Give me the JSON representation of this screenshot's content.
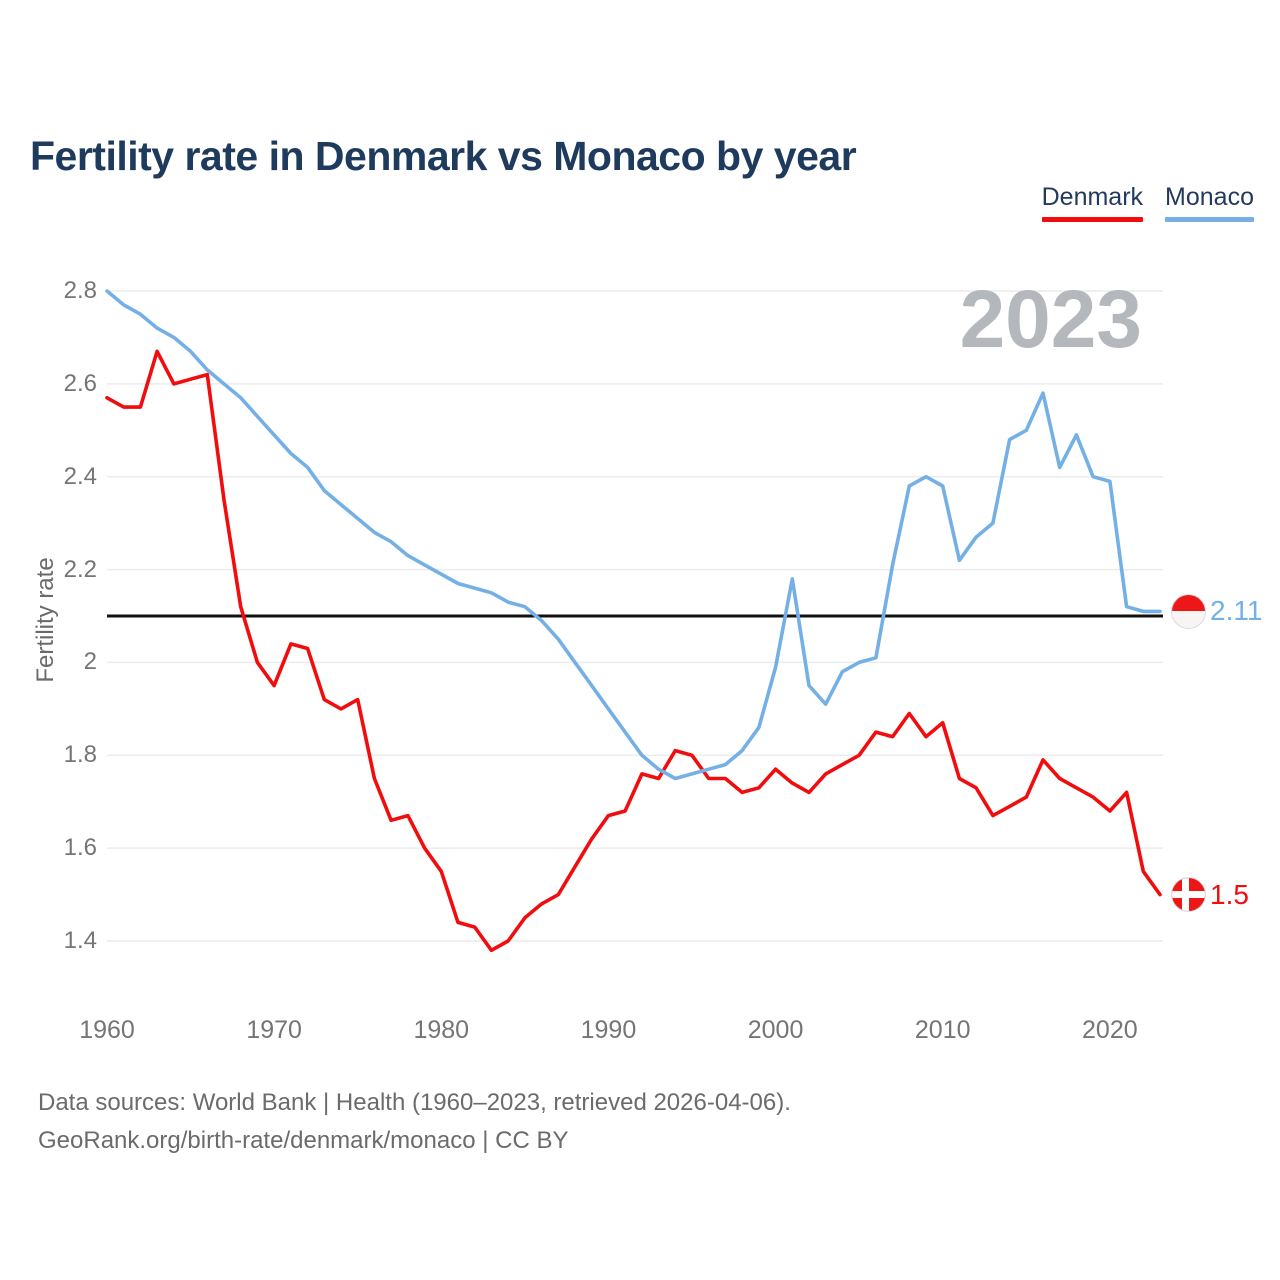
{
  "title": "Fertility rate in Denmark vs Monaco by year",
  "watermark": "2023",
  "colors": {
    "denmark": "#f10d0d",
    "monaco": "#74b0e6",
    "reference_line": "#111111",
    "grid": "#ececec",
    "title_text": "#1e3a5c",
    "axis_text": "#757575",
    "watermark_text": "#b4b8bc"
  },
  "legend": {
    "denmark": {
      "label": "Denmark"
    },
    "monaco": {
      "label": "Monaco"
    }
  },
  "y_axis": {
    "label": "Fertility rate",
    "ticks": [
      "2.8",
      "2.6",
      "2.4",
      "2.2",
      "2",
      "1.8",
      "1.6",
      "1.4"
    ]
  },
  "x_axis": {
    "ticks": [
      "1960",
      "1970",
      "1980",
      "1990",
      "2000",
      "2010",
      "2020"
    ]
  },
  "end_labels": {
    "monaco": {
      "text": "2.11",
      "icon": "monaco-flag-icon"
    },
    "denmark": {
      "text": "1.5",
      "icon": "denmark-flag-icon"
    }
  },
  "footer": {
    "line1": "Data sources: World Bank | Health (1960–2023, retrieved 2026-04-06).",
    "line2": "GeoRank.org/birth-rate/denmark/monaco | CC BY"
  },
  "chart_data": {
    "type": "line",
    "title": "Fertility rate in Denmark vs Monaco by year",
    "xlabel": "",
    "ylabel": "Fertility rate",
    "xlim": [
      1960,
      2023
    ],
    "ylim": [
      1.3,
      2.85
    ],
    "grid": "horizontal",
    "legend_position": "top-right",
    "reference_line": 2.1,
    "x": [
      1960,
      1961,
      1962,
      1963,
      1964,
      1965,
      1966,
      1967,
      1968,
      1969,
      1970,
      1971,
      1972,
      1973,
      1974,
      1975,
      1976,
      1977,
      1978,
      1979,
      1980,
      1981,
      1982,
      1983,
      1984,
      1985,
      1986,
      1987,
      1988,
      1989,
      1990,
      1991,
      1992,
      1993,
      1994,
      1995,
      1996,
      1997,
      1998,
      1999,
      2000,
      2001,
      2002,
      2003,
      2004,
      2005,
      2006,
      2007,
      2008,
      2009,
      2010,
      2011,
      2012,
      2013,
      2014,
      2015,
      2016,
      2017,
      2018,
      2019,
      2020,
      2021,
      2022,
      2023
    ],
    "series": [
      {
        "name": "Denmark",
        "color": "#f10d0d",
        "end_value": 1.5,
        "values": [
          2.57,
          2.55,
          2.55,
          2.67,
          2.6,
          2.61,
          2.62,
          2.35,
          2.12,
          2.0,
          1.95,
          2.04,
          2.03,
          1.92,
          1.9,
          1.92,
          1.75,
          1.66,
          1.67,
          1.6,
          1.55,
          1.44,
          1.43,
          1.38,
          1.4,
          1.45,
          1.48,
          1.5,
          1.56,
          1.62,
          1.67,
          1.68,
          1.76,
          1.75,
          1.81,
          1.8,
          1.75,
          1.75,
          1.72,
          1.73,
          1.77,
          1.74,
          1.72,
          1.76,
          1.78,
          1.8,
          1.85,
          1.84,
          1.89,
          1.84,
          1.87,
          1.75,
          1.73,
          1.67,
          1.69,
          1.71,
          1.79,
          1.75,
          1.73,
          1.71,
          1.68,
          1.72,
          1.55,
          1.5
        ]
      },
      {
        "name": "Monaco",
        "color": "#74b0e6",
        "end_value": 2.11,
        "values": [
          2.8,
          2.77,
          2.75,
          2.72,
          2.7,
          2.67,
          2.63,
          2.6,
          2.57,
          2.53,
          2.49,
          2.45,
          2.42,
          2.37,
          2.34,
          2.31,
          2.28,
          2.26,
          2.23,
          2.21,
          2.19,
          2.17,
          2.16,
          2.15,
          2.13,
          2.12,
          2.09,
          2.05,
          2.0,
          1.95,
          1.9,
          1.85,
          1.8,
          1.77,
          1.75,
          1.76,
          1.77,
          1.78,
          1.81,
          1.86,
          1.99,
          2.18,
          1.95,
          1.91,
          1.98,
          2.0,
          2.01,
          2.21,
          2.38,
          2.4,
          2.38,
          2.22,
          2.27,
          2.3,
          2.48,
          2.5,
          2.58,
          2.42,
          2.49,
          2.4,
          2.39,
          2.12,
          2.11,
          2.11
        ]
      }
    ]
  }
}
